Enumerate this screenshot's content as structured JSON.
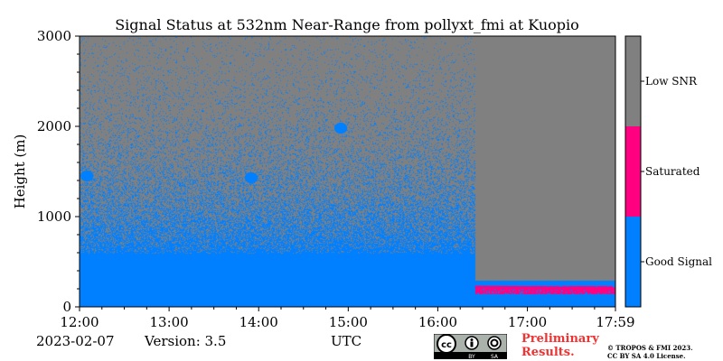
{
  "chart_data": {
    "type": "heatmap",
    "title": "Signal Status at 532nm Near-Range from pollyxt_fmi at Kuopio",
    "xlabel": "UTC",
    "ylabel": "Height (m)",
    "x_range": [
      "12:00",
      "17:59"
    ],
    "xlim_minutes": [
      0,
      359
    ],
    "ylim": [
      0,
      3000
    ],
    "x_ticks": [
      "12:00",
      "13:00",
      "14:00",
      "15:00",
      "16:00",
      "17:00",
      "17:59"
    ],
    "x_tick_minutes": [
      0,
      60,
      120,
      180,
      240,
      300,
      359
    ],
    "y_ticks": [
      0,
      1000,
      2000,
      3000
    ],
    "y_tick_labels": [
      "0",
      "1000",
      "2000",
      "3000"
    ],
    "categories": [
      "Good Signal",
      "Saturated",
      "Low SNR"
    ],
    "category_colors": [
      "#0080ff",
      "#ff0080",
      "#808080"
    ],
    "colorbar_labels": [
      "Low SNR",
      "Saturated",
      "Good Signal"
    ],
    "regions": {
      "good_signal_base_top_before_1625": 600,
      "good_signal_base_top_after_1625": 300,
      "cloud_patches": [
        {
          "time": "12:05",
          "height": 1450
        },
        {
          "time": "13:55",
          "height": 1430
        },
        {
          "time": "14:55",
          "height": 1980
        }
      ],
      "saturated_layer": {
        "start": "16:25",
        "end": "17:59",
        "height": 200
      }
    }
  },
  "footer": {
    "date": "2023-02-07",
    "version": "Version: 3.5",
    "x_axis_label": "UTC",
    "preliminary_line1": "Preliminary",
    "preliminary_line2": "Results.",
    "copyright_line1": "© TROPOS & FMI 2023.",
    "copyright_line2": "CC BY SA 4.0 License.",
    "license_badge_text": [
      "BY",
      "SA"
    ]
  }
}
